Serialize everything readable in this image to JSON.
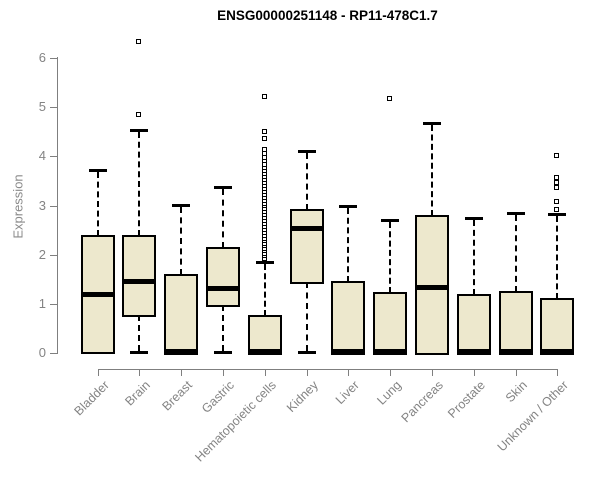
{
  "colors": {
    "box_fill": "#EDE8CD",
    "box_border": "#000000",
    "axis": "#7F7F7F",
    "tick_text": "#848484",
    "title_text": "#000000"
  },
  "chart_data": {
    "type": "boxplot",
    "title": "ENSG00000251148 - RP11-478C1.7",
    "xlabel": "",
    "ylabel": "Expression",
    "ylim": [
      0,
      6
    ],
    "yticks": [
      0,
      1,
      2,
      3,
      4,
      5,
      6
    ],
    "grid": false,
    "legend": false,
    "categories": [
      "Bladder",
      "Brain",
      "Breast",
      "Gastric",
      "Hematopoietic cells",
      "Kidney",
      "Liver",
      "Lung",
      "Pancreas",
      "Prostate",
      "Skin",
      "Unknown / Other"
    ],
    "boxes": [
      {
        "category": "Bladder",
        "whisker_low": 0.03,
        "q1": 0.03,
        "median": 1.18,
        "q3": 2.37,
        "whisker_high": 3.72,
        "outliers": []
      },
      {
        "category": "Brain",
        "whisker_low": 0.03,
        "q1": 0.78,
        "median": 1.45,
        "q3": 2.37,
        "whisker_high": 4.53,
        "outliers": [
          4.84,
          6.33
        ]
      },
      {
        "category": "Breast",
        "whisker_low": 0,
        "q1": 0,
        "median": 0.03,
        "q3": 1.59,
        "whisker_high": 3.01,
        "outliers": []
      },
      {
        "category": "Gastric",
        "whisker_low": 0.03,
        "q1": 0.98,
        "median": 1.32,
        "q3": 2.14,
        "whisker_high": 3.38,
        "outliers": []
      },
      {
        "category": "Hematopoietic cells",
        "whisker_low": 0,
        "q1": 0,
        "median": 0.04,
        "q3": 0.75,
        "whisker_high": 1.86,
        "outliers": [
          1.92,
          1.97,
          2.02,
          2.07,
          2.12,
          2.17,
          2.22,
          2.27,
          2.32,
          2.38,
          2.44,
          2.5,
          2.56,
          2.62,
          2.68,
          2.74,
          2.8,
          2.86,
          2.92,
          2.98,
          3.04,
          3.1,
          3.16,
          3.22,
          3.28,
          3.34,
          3.4,
          3.46,
          3.52,
          3.58,
          3.64,
          3.7,
          3.76,
          3.83,
          3.9,
          3.97,
          4.05,
          4.13,
          4.35,
          4.49,
          5.21
        ]
      },
      {
        "category": "Kidney",
        "whisker_low": 0.03,
        "q1": 1.45,
        "median": 2.54,
        "q3": 2.91,
        "whisker_high": 4.11,
        "outliers": []
      },
      {
        "category": "Liver",
        "whisker_low": 0,
        "q1": 0,
        "median": 0.03,
        "q3": 1.45,
        "whisker_high": 2.98,
        "outliers": []
      },
      {
        "category": "Lung",
        "whisker_low": 0,
        "q1": 0,
        "median": 0.03,
        "q3": 1.23,
        "whisker_high": 2.7,
        "outliers": [
          5.17
        ]
      },
      {
        "category": "Pancreas",
        "whisker_low": 0,
        "q1": 0,
        "median": 1.33,
        "q3": 2.79,
        "whisker_high": 4.67,
        "outliers": []
      },
      {
        "category": "Prostate",
        "whisker_low": 0,
        "q1": 0,
        "median": 0.03,
        "q3": 1.18,
        "whisker_high": 2.74,
        "outliers": []
      },
      {
        "category": "Skin",
        "whisker_low": 0,
        "q1": 0,
        "median": 0.03,
        "q3": 1.25,
        "whisker_high": 2.84,
        "outliers": []
      },
      {
        "category": "Unknown / Other",
        "whisker_low": 0,
        "q1": 0,
        "median": 0.04,
        "q3": 1.1,
        "whisker_high": 2.83,
        "outliers": [
          2.91,
          3.07,
          3.36,
          3.46,
          3.56,
          4.01
        ]
      }
    ]
  }
}
